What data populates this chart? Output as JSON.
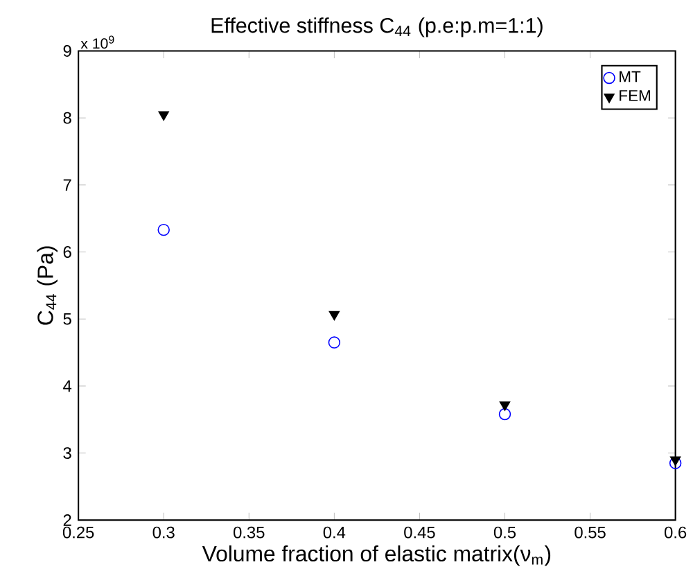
{
  "chart_data": {
    "type": "scatter",
    "title": "Effective stiffness C$_{44}$ (p.e:p.m=1:1)",
    "xlabel": "Volume fraction of elastic matrix(ν$_{m}$)",
    "ylabel": "C$_{44}$ (Pa)",
    "annotations": [
      "x 10$^{9}$"
    ],
    "x": [
      0.3,
      0.4,
      0.5,
      0.6
    ],
    "series": [
      {
        "name": "MT",
        "color": "#0000ff",
        "marker": "circle",
        "values": [
          6.33,
          4.65,
          3.58,
          2.85
        ]
      },
      {
        "name": "FEM",
        "color": "#000000",
        "marker": "triangle",
        "values": [
          8.05,
          5.07,
          3.72,
          2.9
        ]
      }
    ],
    "xlim": [
      0.25,
      0.6
    ],
    "xticks": [
      0.25,
      0.3,
      0.35,
      0.4,
      0.45,
      0.5,
      0.55,
      0.6
    ],
    "ylim": [
      2,
      9
    ],
    "yticks": [
      2,
      3,
      4,
      5,
      6,
      7,
      8,
      9
    ],
    "grid": false,
    "legend": "top right"
  }
}
